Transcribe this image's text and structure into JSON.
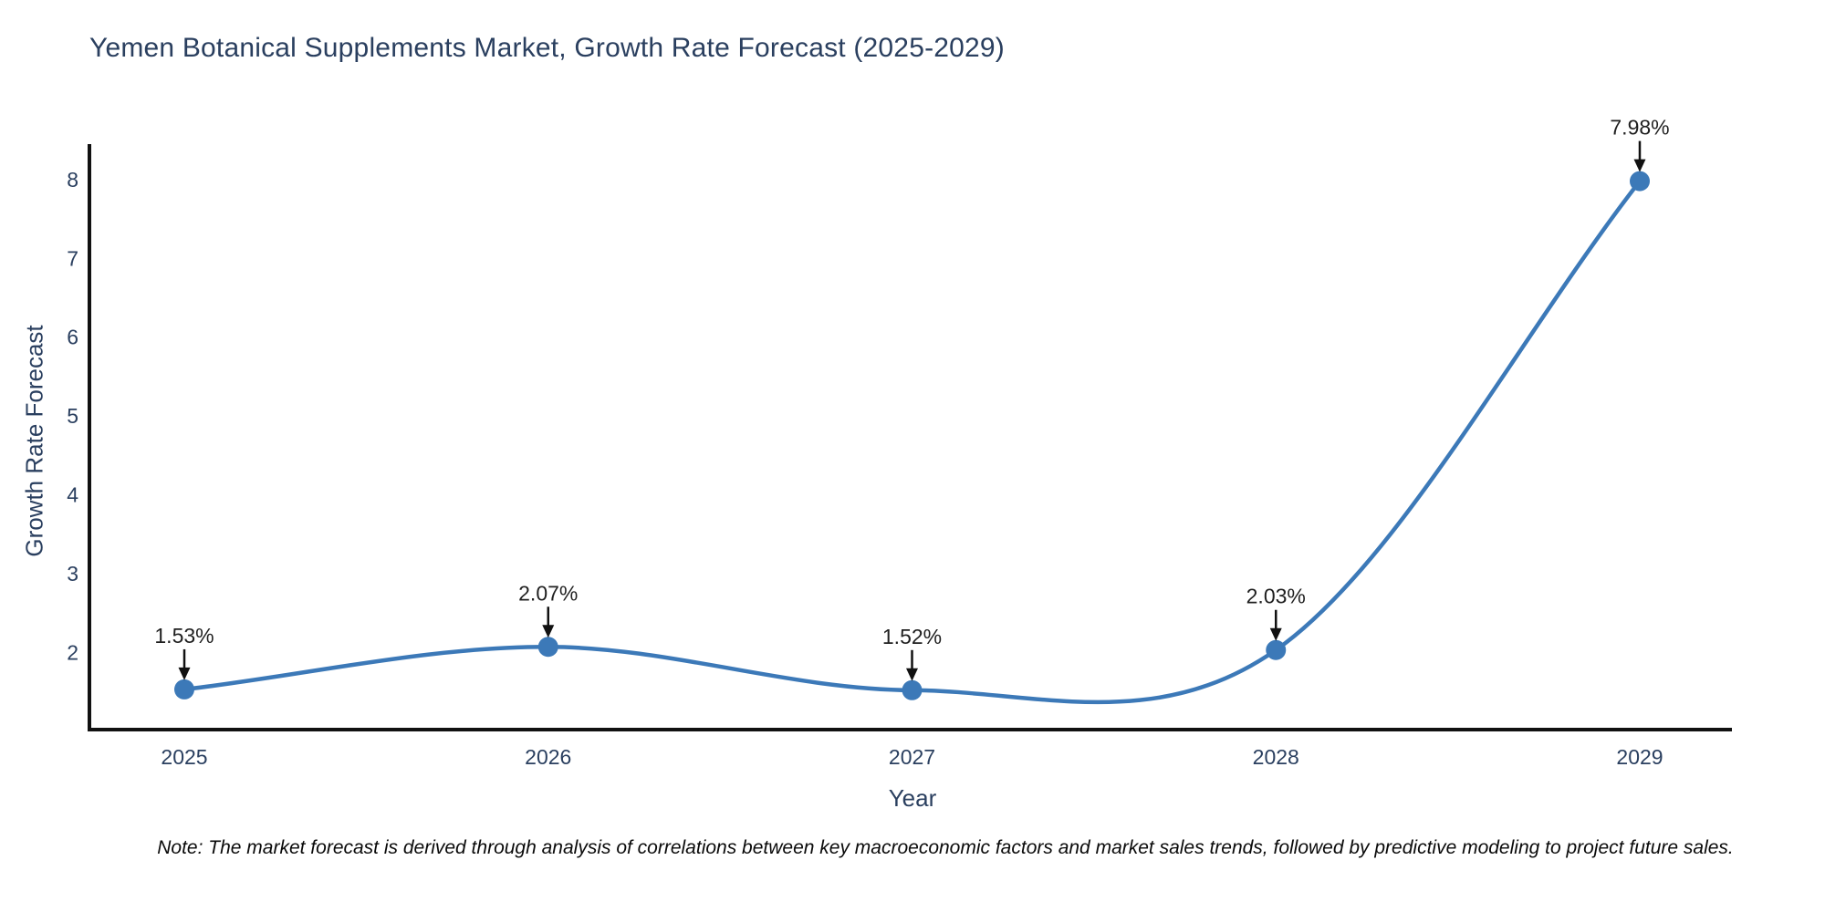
{
  "title": "Yemen Botanical Supplements Market, Growth Rate Forecast (2025-2029)",
  "note": "Note: The market forecast is derived through analysis of correlations between key macroeconomic factors and market sales trends, followed by predictive modeling to project future sales.",
  "chart_data": {
    "type": "line",
    "title": "Yemen Botanical Supplements Market, Growth Rate Forecast (2025-2029)",
    "xlabel": "Year",
    "ylabel": "Growth Rate Forecast",
    "x": [
      2025,
      2026,
      2027,
      2028,
      2029
    ],
    "values": [
      1.53,
      2.07,
      1.52,
      2.03,
      7.98
    ],
    "point_labels": [
      "1.53%",
      "2.07%",
      "1.52%",
      "2.03%",
      "7.98%"
    ],
    "yticks": [
      2,
      3,
      4,
      5,
      6,
      7,
      8
    ],
    "ylim": [
      1.02,
      8.45
    ],
    "grid": false,
    "legend": "none",
    "line_shape": "spline",
    "colors": {
      "line": "#3c79b8",
      "marker": "#3c79b8",
      "axis": "#111111",
      "tick_label": "#2a3f5f",
      "axis_title": "#2a3f5f",
      "figure_title": "#2a3f5f",
      "annotation_text": "#1f1f1f",
      "annotation_arrow": "#111111",
      "background": "#ffffff"
    }
  }
}
